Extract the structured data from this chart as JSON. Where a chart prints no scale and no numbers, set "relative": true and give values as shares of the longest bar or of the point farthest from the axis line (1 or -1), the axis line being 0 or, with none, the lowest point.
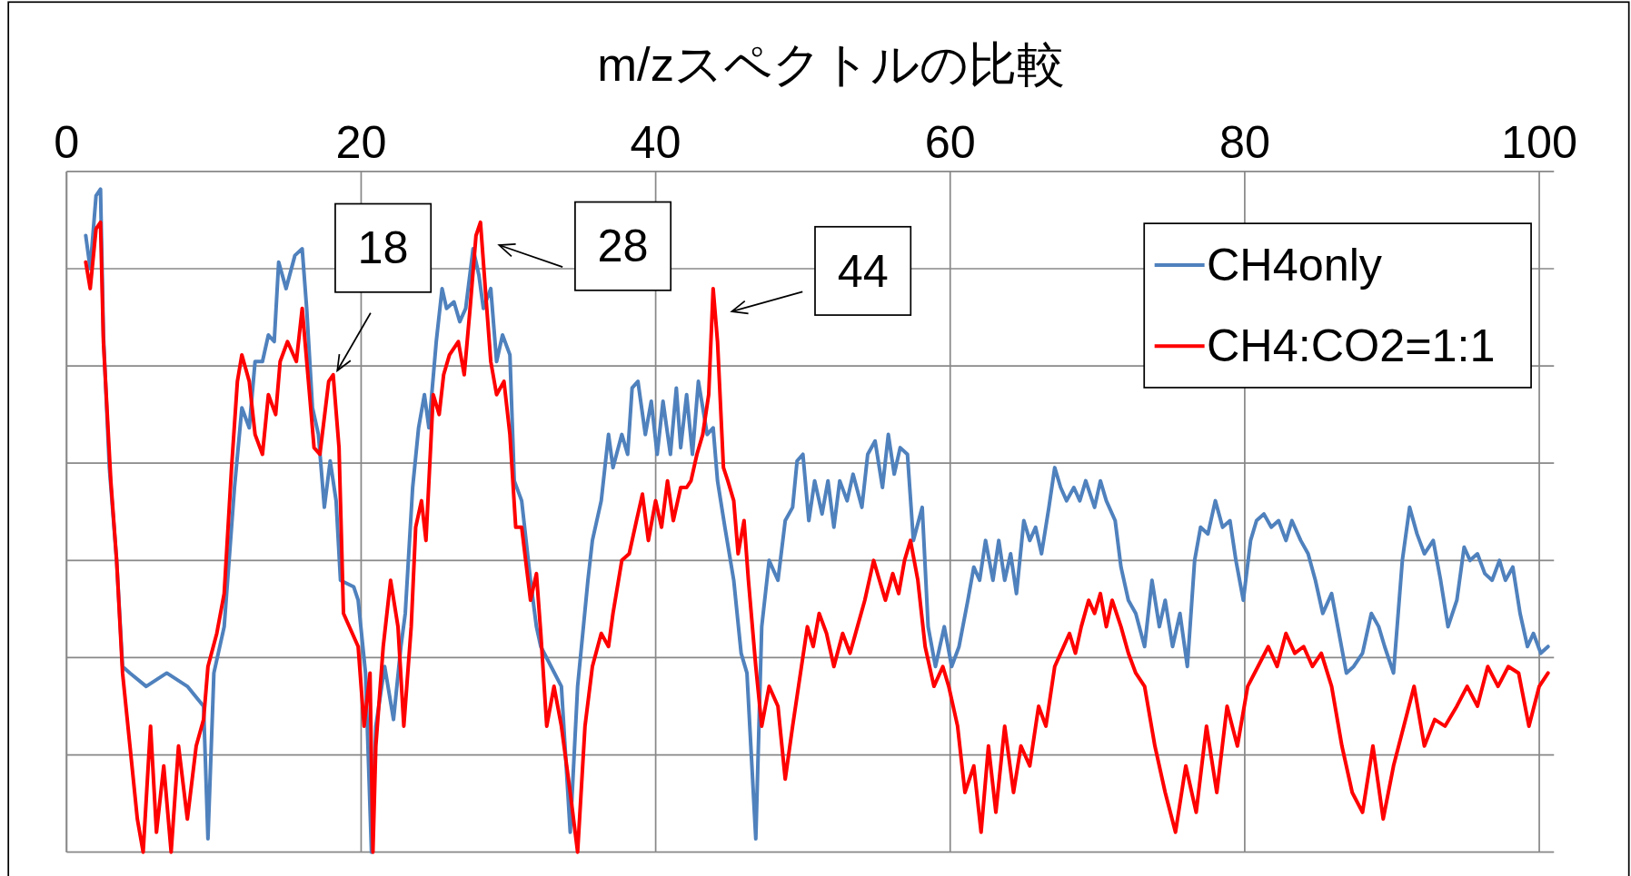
{
  "chart_data": {
    "type": "line",
    "title": "m/zスペクトルの比較",
    "relative": true,
    "xlim": [
      0,
      101
    ],
    "xticks": [
      0,
      20,
      40,
      60,
      80,
      100
    ],
    "grid": true,
    "legend": "top right",
    "marker": "none",
    "series": [
      {
        "name": "CH4only",
        "color": "#4f81bd",
        "x": [
          1.3,
          1.6,
          2.0,
          2.3,
          2.5,
          2.9,
          3.4,
          3.8,
          4.3,
          5.4,
          6.8,
          8.2,
          9.3,
          9.6,
          10.0,
          10.7,
          11.4,
          11.9,
          12.4,
          12.8,
          13.3,
          13.7,
          14.1,
          14.4,
          14.9,
          15.5,
          16.0,
          16.3,
          16.7,
          17.1,
          17.5,
          17.9,
          18.3,
          18.6,
          19.5,
          19.8,
          20.3,
          20.7,
          21.0,
          21.6,
          22.2,
          22.7,
          23.0,
          23.5,
          23.9,
          24.3,
          24.6,
          25.1,
          25.5,
          25.8,
          26.3,
          26.7,
          27.1,
          27.6,
          28.0,
          28.3,
          28.8,
          29.2,
          29.6,
          30.1,
          30.4,
          30.9,
          31.5,
          31.9,
          32.2,
          32.9,
          33.6,
          34.2,
          34.7,
          35.4,
          35.7,
          36.3,
          36.8,
          37.1,
          37.7,
          38.1,
          38.4,
          38.8,
          39.3,
          39.7,
          40.1,
          40.5,
          41.0,
          41.4,
          41.7,
          42.1,
          42.5,
          42.9,
          43.5,
          43.9,
          44.2,
          44.7,
          45.3,
          45.8,
          46.2,
          46.8,
          47.2,
          47.7,
          48.3,
          48.8,
          49.3,
          49.6,
          50.0,
          50.4,
          50.8,
          51.3,
          51.7,
          52.1,
          52.5,
          53.0,
          53.4,
          54.0,
          54.4,
          54.9,
          55.4,
          55.8,
          56.2,
          56.6,
          57.1,
          57.5,
          58.1,
          58.5,
          59.0,
          59.6,
          60.1,
          60.6,
          61.2,
          61.6,
          62.0,
          62.4,
          62.9,
          63.3,
          63.7,
          64.1,
          64.5,
          65.0,
          65.4,
          65.8,
          66.2,
          66.7,
          67.1,
          67.5,
          67.9,
          68.4,
          68.8,
          69.2,
          69.8,
          70.2,
          70.6,
          71.2,
          71.6,
          72.1,
          72.6,
          73.2,
          73.7,
          74.2,
          74.6,
          75.1,
          75.6,
          76.1,
          76.6,
          77.0,
          77.5,
          78.0,
          78.5,
          79.0,
          79.4,
          79.9,
          80.4,
          80.8,
          81.3,
          81.8,
          82.3,
          82.8,
          83.2,
          83.8,
          84.3,
          84.8,
          85.3,
          85.9,
          86.4,
          86.9,
          87.4,
          88.0,
          88.6,
          89.1,
          89.5,
          90.1,
          90.7,
          91.2,
          91.7,
          92.2,
          92.8,
          93.3,
          93.8,
          94.4,
          94.9,
          95.3,
          95.8,
          96.3,
          96.8,
          97.3,
          97.7,
          98.2,
          98.7,
          99.2,
          99.6,
          100.1,
          100.6
        ],
        "values": [
          0.93,
          0.88,
          0.99,
          1.0,
          0.78,
          0.58,
          0.44,
          0.28,
          0.27,
          0.25,
          0.27,
          0.25,
          0.22,
          0.02,
          0.27,
          0.34,
          0.55,
          0.67,
          0.64,
          0.74,
          0.74,
          0.78,
          0.77,
          0.89,
          0.85,
          0.9,
          0.91,
          0.82,
          0.67,
          0.63,
          0.52,
          0.59,
          0.53,
          0.41,
          0.4,
          0.38,
          0.27,
          0,
          0.19,
          0.28,
          0.2,
          0.31,
          0.36,
          0.55,
          0.64,
          0.69,
          0.64,
          0.77,
          0.85,
          0.82,
          0.83,
          0.8,
          0.82,
          0.91,
          0.87,
          0.82,
          0.85,
          0.74,
          0.78,
          0.75,
          0.56,
          0.53,
          0.41,
          0.34,
          0.31,
          0.28,
          0.25,
          0.03,
          0.25,
          0.41,
          0.47,
          0.53,
          0.63,
          0.58,
          0.63,
          0.6,
          0.7,
          0.71,
          0.63,
          0.68,
          0.6,
          0.68,
          0.6,
          0.7,
          0.61,
          0.69,
          0.6,
          0.71,
          0.63,
          0.64,
          0.56,
          0.49,
          0.41,
          0.3,
          0.27,
          0.02,
          0.34,
          0.44,
          0.41,
          0.5,
          0.52,
          0.59,
          0.6,
          0.5,
          0.56,
          0.51,
          0.56,
          0.49,
          0.56,
          0.53,
          0.57,
          0.52,
          0.6,
          0.62,
          0.55,
          0.63,
          0.57,
          0.61,
          0.6,
          0.47,
          0.52,
          0.34,
          0.28,
          0.34,
          0.28,
          0.31,
          0.38,
          0.43,
          0.41,
          0.47,
          0.41,
          0.47,
          0.41,
          0.45,
          0.39,
          0.5,
          0.47,
          0.49,
          0.45,
          0.52,
          0.58,
          0.55,
          0.53,
          0.55,
          0.53,
          0.56,
          0.52,
          0.56,
          0.53,
          0.5,
          0.43,
          0.38,
          0.36,
          0.31,
          0.41,
          0.34,
          0.38,
          0.31,
          0.36,
          0.28,
          0.44,
          0.49,
          0.48,
          0.53,
          0.49,
          0.5,
          0.44,
          0.38,
          0.47,
          0.5,
          0.51,
          0.49,
          0.5,
          0.47,
          0.5,
          0.47,
          0.45,
          0.41,
          0.36,
          0.39,
          0.33,
          0.27,
          0.28,
          0.3,
          0.36,
          0.34,
          0.31,
          0.27,
          0.44,
          0.52,
          0.48,
          0.45,
          0.47,
          0.41,
          0.34,
          0.38,
          0.46,
          0.44,
          0.45,
          0.42,
          0.41,
          0.44,
          0.41,
          0.43,
          0.36,
          0.31,
          0.33,
          0.3,
          0.31
        ]
      },
      {
        "name": "CH4:CO2=1:1",
        "color": "#ff0000",
        "x": [
          1.3,
          1.6,
          2.0,
          2.3,
          2.5,
          3.0,
          3.4,
          3.8,
          4.3,
          4.8,
          5.2,
          5.7,
          6.1,
          6.6,
          7.1,
          7.6,
          8.2,
          8.8,
          9.3,
          9.6,
          10.2,
          10.7,
          11.2,
          11.6,
          11.9,
          12.4,
          12.8,
          13.3,
          13.7,
          14.2,
          14.5,
          15.0,
          15.6,
          16.0,
          16.5,
          16.8,
          17.2,
          17.8,
          18.1,
          18.5,
          18.8,
          19.4,
          19.8,
          20.2,
          20.6,
          20.8,
          21.0,
          21.5,
          22.0,
          22.5,
          22.9,
          23.4,
          23.7,
          24.1,
          24.4,
          24.9,
          25.3,
          25.6,
          26.0,
          26.6,
          27.0,
          27.4,
          27.8,
          28.1,
          28.5,
          28.8,
          29.2,
          29.7,
          30.1,
          30.5,
          30.9,
          31.5,
          31.9,
          32.2,
          32.6,
          33.1,
          33.6,
          34.2,
          34.7,
          35.2,
          35.7,
          36.3,
          36.8,
          37.1,
          37.7,
          38.2,
          38.7,
          39.1,
          39.5,
          40.0,
          40.4,
          40.8,
          41.2,
          41.7,
          42.1,
          42.4,
          42.8,
          43.2,
          43.6,
          43.9,
          44.2,
          44.6,
          44.9,
          45.3,
          45.6,
          46.0,
          46.3,
          46.8,
          47.2,
          47.7,
          48.3,
          48.8,
          49.3,
          49.9,
          50.3,
          50.7,
          51.1,
          51.6,
          52.1,
          52.7,
          53.2,
          53.7,
          54.2,
          54.8,
          55.2,
          55.6,
          56.1,
          56.5,
          56.9,
          57.3,
          57.8,
          58.3,
          58.9,
          59.5,
          59.9,
          60.5,
          61.0,
          61.6,
          62.1,
          62.6,
          63.1,
          63.7,
          64.3,
          64.8,
          65.4,
          66.0,
          66.5,
          67.1,
          67.5,
          68.1,
          68.5,
          68.9,
          69.4,
          69.8,
          70.2,
          70.6,
          71.0,
          71.6,
          72.1,
          72.6,
          73.2,
          73.9,
          74.6,
          75.3,
          76.0,
          76.7,
          77.4,
          78.1,
          78.8,
          79.5,
          80.2,
          80.9,
          81.6,
          82.2,
          82.8,
          83.4,
          84.0,
          84.6,
          85.2,
          85.9,
          86.6,
          87.3,
          88.0,
          88.7,
          89.4,
          90.1,
          90.8,
          91.5,
          92.2,
          92.9,
          93.6,
          94.4,
          95.1,
          95.8,
          96.5,
          97.2,
          97.9,
          98.6,
          99.3,
          100.0,
          100.6
        ],
        "values": [
          0.89,
          0.85,
          0.94,
          0.95,
          0.77,
          0.56,
          0.44,
          0.27,
          0.16,
          0.05,
          0,
          0.19,
          0.03,
          0.13,
          0,
          0.16,
          0.05,
          0.16,
          0.2,
          0.28,
          0.33,
          0.39,
          0.58,
          0.71,
          0.75,
          0.71,
          0.63,
          0.6,
          0.69,
          0.66,
          0.74,
          0.77,
          0.74,
          0.82,
          0.69,
          0.61,
          0.6,
          0.71,
          0.72,
          0.61,
          0.36,
          0.33,
          0.31,
          0.19,
          0.27,
          0,
          0.16,
          0.31,
          0.41,
          0.34,
          0.19,
          0.34,
          0.49,
          0.53,
          0.47,
          0.69,
          0.66,
          0.72,
          0.75,
          0.77,
          0.72,
          0.82,
          0.93,
          0.95,
          0.83,
          0.74,
          0.69,
          0.71,
          0.63,
          0.49,
          0.49,
          0.38,
          0.42,
          0.33,
          0.19,
          0.25,
          0.19,
          0.09,
          0,
          0.19,
          0.28,
          0.33,
          0.31,
          0.36,
          0.44,
          0.45,
          0.5,
          0.54,
          0.47,
          0.53,
          0.49,
          0.56,
          0.5,
          0.55,
          0.55,
          0.56,
          0.6,
          0.63,
          0.69,
          0.85,
          0.77,
          0.58,
          0.56,
          0.53,
          0.45,
          0.5,
          0.41,
          0.28,
          0.19,
          0.25,
          0.22,
          0.11,
          0.19,
          0.28,
          0.34,
          0.31,
          0.36,
          0.33,
          0.28,
          0.33,
          0.3,
          0.34,
          0.38,
          0.44,
          0.41,
          0.38,
          0.42,
          0.39,
          0.44,
          0.47,
          0.41,
          0.31,
          0.25,
          0.28,
          0.25,
          0.19,
          0.09,
          0.13,
          0.03,
          0.16,
          0.06,
          0.19,
          0.09,
          0.16,
          0.13,
          0.22,
          0.19,
          0.28,
          0.3,
          0.33,
          0.3,
          0.34,
          0.38,
          0.36,
          0.39,
          0.34,
          0.38,
          0.34,
          0.3,
          0.27,
          0.25,
          0.16,
          0.09,
          0.03,
          0.13,
          0.06,
          0.19,
          0.09,
          0.22,
          0.16,
          0.25,
          0.28,
          0.31,
          0.28,
          0.33,
          0.3,
          0.31,
          0.28,
          0.3,
          0.25,
          0.16,
          0.09,
          0.06,
          0.16,
          0.05,
          0.13,
          0.19,
          0.25,
          0.16,
          0.2,
          0.19,
          0.22,
          0.25,
          0.22,
          0.28,
          0.25,
          0.28,
          0.27,
          0.19,
          0.25,
          0.27
        ]
      }
    ],
    "annotations": [
      {
        "text": "18",
        "x": 18.1,
        "y": 0.72
      },
      {
        "text": "28",
        "x": 28.1,
        "y": 0.95
      },
      {
        "text": "44",
        "x": 43.9,
        "y": 0.85
      }
    ]
  }
}
